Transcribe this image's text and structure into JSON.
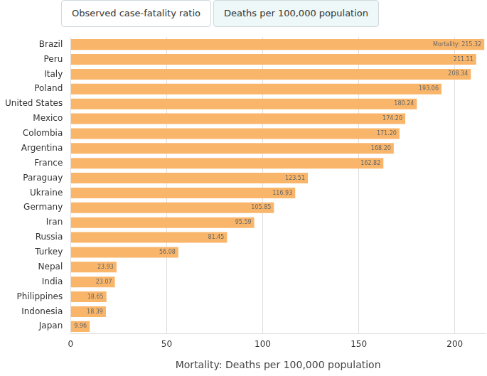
{
  "tabs": [
    "Observed case-fatality ratio",
    "Deaths per 100,000 population"
  ],
  "chart_data": {
    "type": "bar",
    "orientation": "horizontal",
    "x_label": "Mortality: Deaths per 100,000 population",
    "categories": [
      "Brazil",
      "Peru",
      "Italy",
      "Poland",
      "United States",
      "Mexico",
      "Colombia",
      "Argentina",
      "France",
      "Paraguay",
      "Ukraine",
      "Germany",
      "Iran",
      "Russia",
      "Turkey",
      "Nepal",
      "India",
      "Philippines",
      "Indonesia",
      "Japan"
    ],
    "values": [
      215.32,
      211.11,
      208.34,
      193.06,
      180.24,
      174.2,
      171.2,
      168.2,
      162.82,
      123.51,
      116.93,
      105.85,
      95.59,
      81.45,
      56.08,
      23.93,
      23.07,
      18.65,
      18.39,
      9.96
    ],
    "value_labels": [
      "Mortality: 215.32",
      "211.11",
      "208.34",
      "193.06",
      "180.24",
      "174.20",
      "171.20",
      "168.20",
      "162.82",
      "123.51",
      "116.93",
      "105.85",
      "95.59",
      "81.45",
      "56.08",
      "23.93",
      "23.07",
      "18.65",
      "18.39",
      "9.96"
    ],
    "data_labels": true,
    "color": "#f9b66b",
    "xlim": [
      0,
      216
    ],
    "xticks": [
      0,
      50,
      100,
      150,
      200
    ],
    "grid": true
  }
}
